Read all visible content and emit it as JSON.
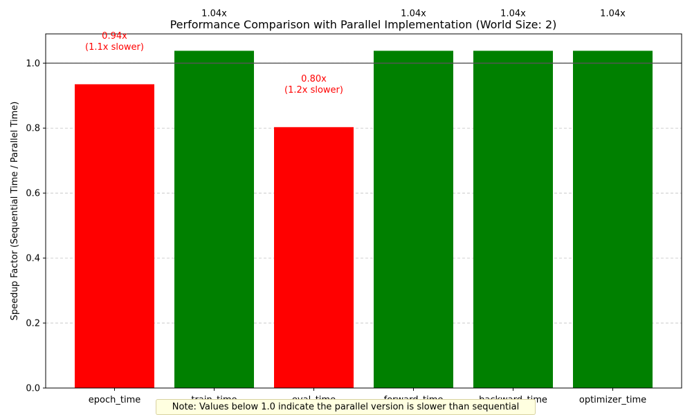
{
  "chart_data": {
    "type": "bar",
    "title": "Performance Comparison with Parallel Implementation (World Size: 2)",
    "xlabel": "",
    "ylabel": "Speedup Factor (Sequential Time / Parallel Time)",
    "ylim": [
      0,
      1.09
    ],
    "yticks": [
      "0.0",
      "0.2",
      "0.4",
      "0.6",
      "0.8",
      "1.0"
    ],
    "grid": "y-dashed",
    "reference_line": 1.0,
    "categories": [
      "epoch_time",
      "train_time",
      "eval_time",
      "forward_time",
      "backward_time",
      "optimizer_time"
    ],
    "values": [
      0.935,
      1.038,
      0.803,
      1.038,
      1.038,
      1.038
    ],
    "labels": [
      "0.94x",
      "1.04x",
      "0.80x",
      "1.04x",
      "1.04x",
      "1.04x"
    ],
    "sublabels": [
      "(1.1x slower)",
      "",
      "(1.2x slower)",
      "",
      "",
      ""
    ],
    "colors": {
      "slower": "#ff0000",
      "faster": "#008000"
    }
  },
  "note": "Note: Values below 1.0 indicate the parallel version is slower than sequential"
}
